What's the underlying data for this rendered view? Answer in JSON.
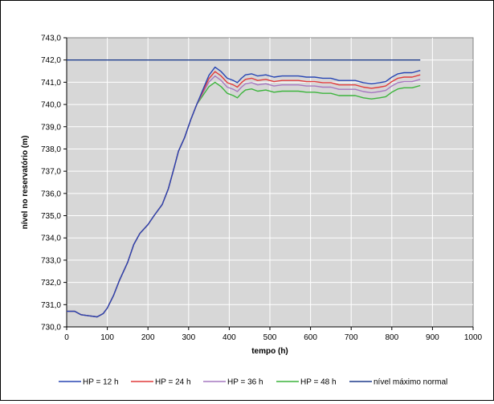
{
  "chart_data": {
    "type": "line",
    "xlabel": "tempo (h)",
    "ylabel": "nível no reservatório (m)",
    "xlim": [
      0,
      1000
    ],
    "ylim": [
      730.0,
      743.0
    ],
    "x_ticks": [
      "0",
      "100",
      "200",
      "300",
      "400",
      "500",
      "600",
      "700",
      "800",
      "900",
      "1000"
    ],
    "y_ticks": [
      "730,0",
      "731,0",
      "732,0",
      "733,0",
      "734,0",
      "735,0",
      "736,0",
      "737,0",
      "738,0",
      "739,0",
      "740,0",
      "741,0",
      "742,0",
      "743,0"
    ],
    "grid": true,
    "legend_position": "bottom",
    "series": [
      {
        "name": "HP = 12 h",
        "color": "#2846b4",
        "offset": 0.68
      },
      {
        "name": "HP = 24 h",
        "color": "#e03c3c",
        "offset": 0.48
      },
      {
        "name": "HP = 36 h",
        "color": "#a678c0",
        "offset": 0.28
      },
      {
        "name": "HP = 48 h",
        "color": "#3cb43c",
        "offset": 0.0
      },
      {
        "name": "nível máximo normal",
        "color": "#1e3c8c",
        "constant": 742.0,
        "x_range": [
          0,
          870
        ]
      }
    ],
    "base_curve": [
      [
        0,
        730.7
      ],
      [
        20,
        730.7
      ],
      [
        35,
        730.55
      ],
      [
        55,
        730.5
      ],
      [
        75,
        730.45
      ],
      [
        90,
        730.6
      ],
      [
        100,
        730.85
      ],
      [
        115,
        731.4
      ],
      [
        130,
        732.1
      ],
      [
        150,
        732.9
      ],
      [
        165,
        733.7
      ],
      [
        180,
        734.2
      ],
      [
        200,
        734.6
      ],
      [
        215,
        735.0
      ],
      [
        235,
        735.5
      ],
      [
        250,
        736.2
      ],
      [
        265,
        737.2
      ],
      [
        275,
        737.9
      ],
      [
        290,
        738.5
      ],
      [
        305,
        739.3
      ],
      [
        320,
        740.0
      ],
      [
        335,
        740.4
      ],
      [
        350,
        740.8
      ],
      [
        365,
        741.0
      ],
      [
        380,
        740.8
      ],
      [
        395,
        740.5
      ],
      [
        410,
        740.4
      ],
      [
        420,
        740.3
      ],
      [
        430,
        740.5
      ],
      [
        440,
        740.65
      ],
      [
        455,
        740.7
      ],
      [
        470,
        740.6
      ],
      [
        490,
        740.65
      ],
      [
        510,
        740.55
      ],
      [
        530,
        740.6
      ],
      [
        550,
        740.6
      ],
      [
        570,
        740.6
      ],
      [
        590,
        740.55
      ],
      [
        610,
        740.55
      ],
      [
        630,
        740.5
      ],
      [
        650,
        740.5
      ],
      [
        670,
        740.4
      ],
      [
        690,
        740.4
      ],
      [
        710,
        740.4
      ],
      [
        730,
        740.3
      ],
      [
        750,
        740.25
      ],
      [
        770,
        740.3
      ],
      [
        785,
        740.35
      ],
      [
        800,
        740.55
      ],
      [
        815,
        740.7
      ],
      [
        830,
        740.75
      ],
      [
        850,
        740.75
      ],
      [
        870,
        740.85
      ]
    ],
    "divergence_start": 320,
    "divergence_full": 360
  }
}
